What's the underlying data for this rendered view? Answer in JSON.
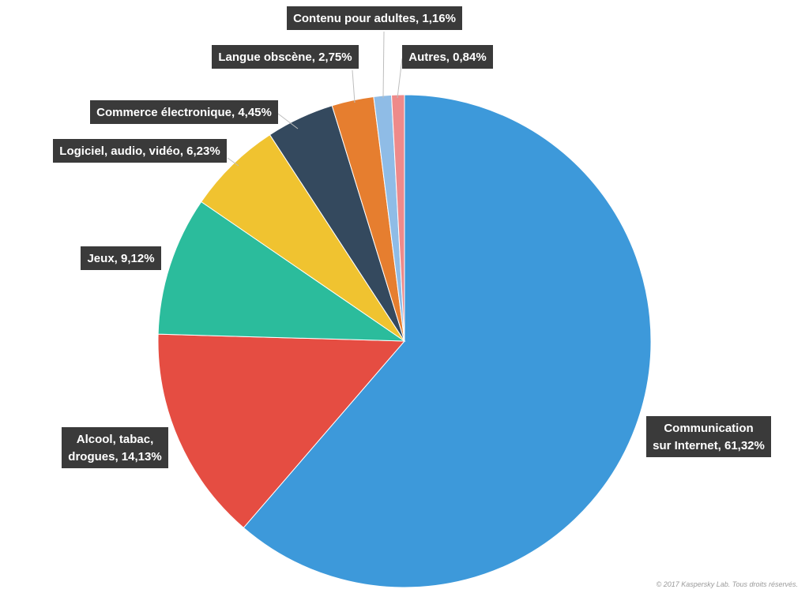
{
  "chart_data": {
    "type": "pie",
    "start_angle_deg": 0,
    "direction": "clockwise",
    "slices": [
      {
        "label_lines": [
          "Communication",
          "sur Internet, 61,32%"
        ],
        "category": "Communication sur Internet",
        "value": 61.32,
        "color": "#3d99da"
      },
      {
        "label_lines": [
          "Alcool, tabac,",
          "drogues, 14,13%"
        ],
        "category": "Alcool, tabac, drogues",
        "value": 14.13,
        "color": "#e54d42"
      },
      {
        "label_lines": [
          "Jeux, 9,12%"
        ],
        "category": "Jeux",
        "value": 9.12,
        "color": "#2bbc9c"
      },
      {
        "label_lines": [
          "Logiciel, audio, vidéo, 6,23%"
        ],
        "category": "Logiciel, audio, vidéo",
        "value": 6.23,
        "color": "#f0c330"
      },
      {
        "label_lines": [
          "Commerce électronique, 4,45%"
        ],
        "category": "Commerce électronique",
        "value": 4.45,
        "color": "#34495e"
      },
      {
        "label_lines": [
          "Langue obscène, 2,75%"
        ],
        "category": "Langue obscène",
        "value": 2.75,
        "color": "#e67e2f"
      },
      {
        "label_lines": [
          "Contenu pour adultes, 1,16%"
        ],
        "category": "Contenu pour adultes",
        "value": 1.16,
        "color": "#8fbce6"
      },
      {
        "label_lines": [
          "Autres, 0,84%"
        ],
        "category": "Autres",
        "value": 0.84,
        "color": "#ee8a8a"
      }
    ]
  },
  "footer": {
    "copyright": "© 2017 Kaspersky Lab. Tous droits réservés."
  }
}
